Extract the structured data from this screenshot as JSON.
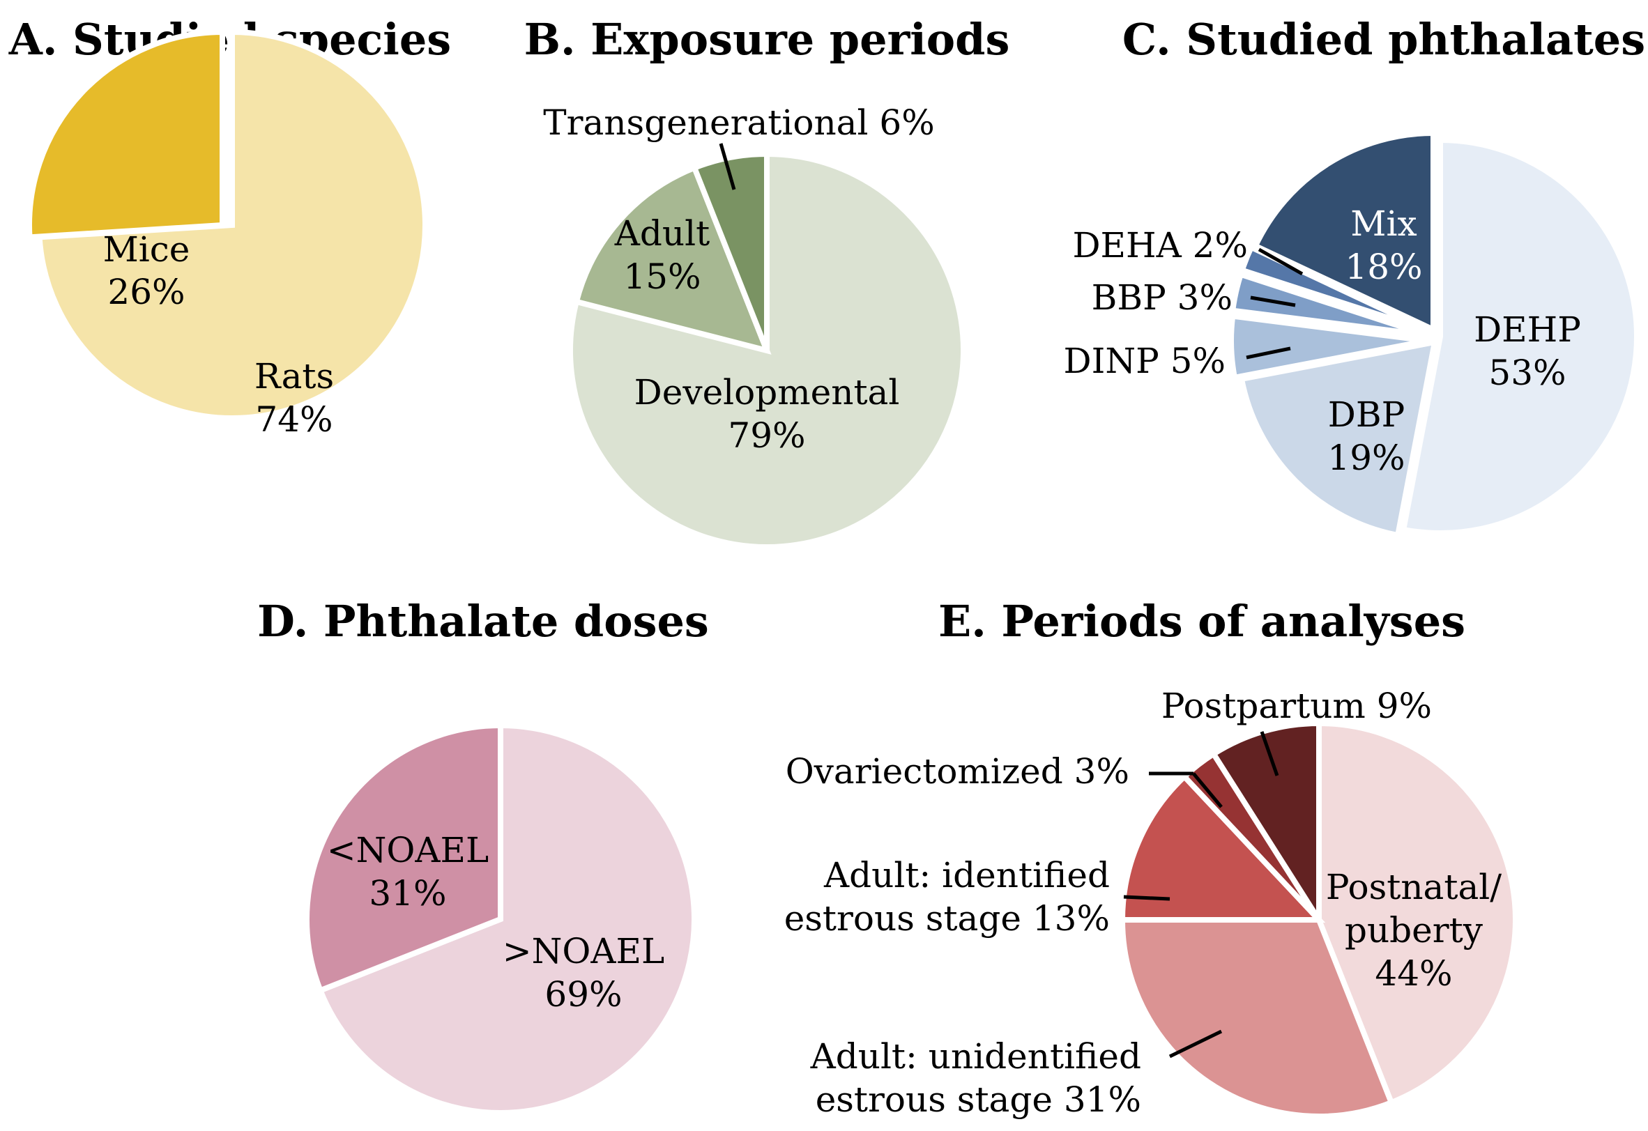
{
  "chart_data": [
    {
      "type": "pie",
      "title": "A. Studied species",
      "slices": [
        {
          "label": "Rats",
          "value": 74,
          "text": "74%",
          "color": "#f5e4a9"
        },
        {
          "label": "Mice",
          "value": 26,
          "text": "26%",
          "color": "#e6bb2a"
        }
      ]
    },
    {
      "type": "pie",
      "title": "B. Exposure periods",
      "slices": [
        {
          "label": "Developmental",
          "value": 79,
          "text": "79%",
          "color": "#dbe2d2"
        },
        {
          "label": "Adult",
          "value": 15,
          "text": "15%",
          "color": "#a7b892"
        },
        {
          "label": "Transgenerational",
          "value": 6,
          "text": "6%",
          "color": "#7a9363"
        }
      ]
    },
    {
      "type": "pie",
      "title": "C. Studied phthalates",
      "slices": [
        {
          "label": "DEHP",
          "value": 53,
          "text": "53%",
          "color": "#e6edf6"
        },
        {
          "label": "DBP",
          "value": 19,
          "text": "19%",
          "color": "#cbd8e8"
        },
        {
          "label": "DINP",
          "value": 5,
          "text": "5%",
          "color": "#aac0db"
        },
        {
          "label": "BBP",
          "value": 3,
          "text": "3%",
          "color": "#7f9ec7"
        },
        {
          "label": "DEHA",
          "value": 2,
          "text": "2%",
          "color": "#5577a8"
        },
        {
          "label": "Mix",
          "value": 18,
          "text": "18%",
          "color": "#334f71"
        }
      ]
    },
    {
      "type": "pie",
      "title": "D. Phthalate doses",
      "slices": [
        {
          "label": ">NOAEL",
          "value": 69,
          "text": "69%",
          "color": "#ecd3dc"
        },
        {
          "label": "<NOAEL",
          "value": 31,
          "text": "31%",
          "color": "#cf90a5"
        }
      ]
    },
    {
      "type": "pie",
      "title": "E. Periods of analyses",
      "slices": [
        {
          "label": "Postnatal/ puberty",
          "line1": "Postnatal/",
          "line2": "puberty",
          "value": 44,
          "text": "44%",
          "color": "#f2dadb"
        },
        {
          "label": "Adult: unidentified estrous stage",
          "line1": "Adult: unidentified",
          "line2": "estrous stage",
          "value": 31,
          "text": "31%",
          "color": "#db9393"
        },
        {
          "label": "Adult: identified estrous stage",
          "line1": "Adult: identified",
          "line2": "estrous stage",
          "value": 13,
          "text": "13%",
          "color": "#c45250"
        },
        {
          "label": "Ovariectomized",
          "value": 3,
          "text": "3%",
          "color": "#963333"
        },
        {
          "label": "Postpartum",
          "value": 9,
          "text": "9%",
          "color": "#622222"
        }
      ]
    }
  ]
}
